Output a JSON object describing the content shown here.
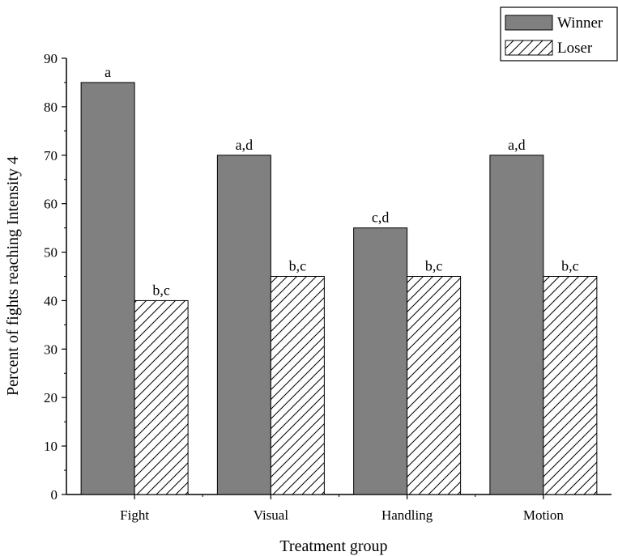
{
  "chart_data": {
    "type": "bar",
    "title": "",
    "xlabel": "Treatment group",
    "ylabel": "Percent of fights reaching Intensity 4",
    "categories": [
      "Fight",
      "Visual",
      "Handling",
      "Motion"
    ],
    "ylim": [
      0,
      90
    ],
    "yticks": [
      0,
      10,
      20,
      30,
      40,
      50,
      60,
      70,
      80,
      90
    ],
    "grid": false,
    "legend_position": "top-right",
    "series": [
      {
        "name": "Winner",
        "fill": "solid",
        "color": "#808080",
        "values": [
          85,
          70,
          55,
          70
        ],
        "annotations": [
          "a",
          "a,d",
          "c,d",
          "a,d"
        ]
      },
      {
        "name": "Loser",
        "fill": "hatched",
        "color": "#ffffff",
        "values": [
          40,
          45,
          45,
          45
        ],
        "annotations": [
          "b,c",
          "b,c",
          "b,c",
          "b,c"
        ]
      }
    ]
  }
}
